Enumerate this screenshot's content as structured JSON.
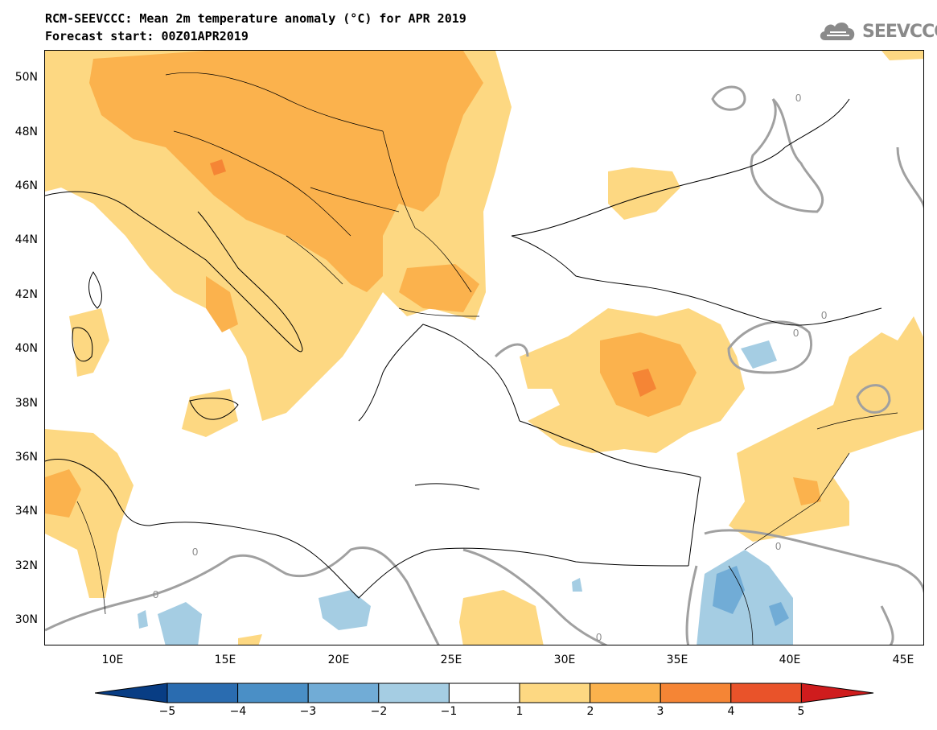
{
  "header": {
    "title_line1": "RCM-SEEVCCC: Mean 2m temperature anomaly (°C) for APR 2019",
    "title_line2": "Forecast start: 00Z01APR2019",
    "logo_text": "SEEVCCC"
  },
  "map": {
    "lat_labels": [
      "50N",
      "48N",
      "46N",
      "44N",
      "42N",
      "40N",
      "38N",
      "36N",
      "34N",
      "32N",
      "30N"
    ],
    "lon_labels": [
      "10E",
      "15E",
      "20E",
      "25E",
      "30E",
      "35E",
      "40E",
      "45E"
    ],
    "contour_labels": [
      "0",
      "0",
      "0",
      "0",
      "0",
      "0",
      "0"
    ],
    "colors": {
      "anomaly_1_2": "#fdd882",
      "anomaly_2_3": "#fbb24d",
      "anomaly_3_4": "#f58535",
      "anomaly_4_5": "#e9532a",
      "anomaly_m1_m2": "#a5cde3",
      "anomaly_m2_m3": "#71acd6",
      "anomaly_m3_m4": "#4a8fc6",
      "contour_zero": "#a0a0a0"
    }
  },
  "colorbar": {
    "labels": [
      "−5",
      "−4",
      "−3",
      "−2",
      "−1",
      "1",
      "2",
      "3",
      "4",
      "5"
    ],
    "colors": [
      "#083d84",
      "#2a6cb0",
      "#4a8fc6",
      "#71acd6",
      "#a5cde3",
      "#ffffff",
      "#fdd882",
      "#fbb24d",
      "#f58535",
      "#e9532a",
      "#cf1c1d"
    ]
  }
}
